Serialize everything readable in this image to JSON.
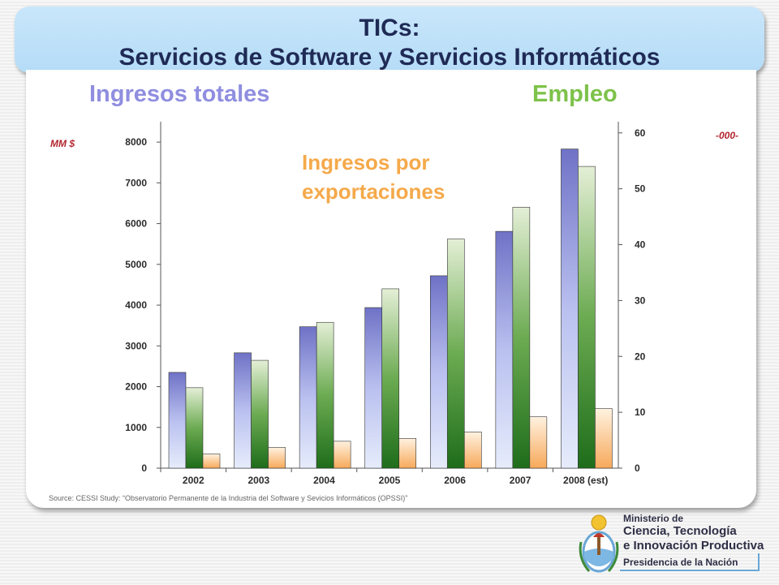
{
  "header": {
    "line1": "TICs:",
    "line2": "Servicios de Software y Servicios Informáticos"
  },
  "labels": {
    "ingresos_totales": "Ingresos totales",
    "empleo": "Empleo",
    "exportaciones_line1": "Ingresos por",
    "exportaciones_line2": "exportaciones",
    "unit_left": "MM $",
    "unit_right": "-000-"
  },
  "source": "Source: CESSI Study: “Observatorio Permanente de la Industria del Software y Sevicios Informáticos (OPSSI)”",
  "logo": {
    "line1": "Ministerio de",
    "line2": "Ciencia, Tecnología",
    "line3": "e Innovación Productiva",
    "line4": "Presidencia de la Nación"
  },
  "colors": {
    "ingresos": "#8f8ee0",
    "empleo": "#7dc24a",
    "exportaciones": "#f5a94a",
    "title_bar": "#b5dcf7",
    "title_text": "#1f2a55",
    "unit_text": "#b3262f"
  },
  "chart_data": {
    "type": "bar",
    "categories": [
      "2002",
      "2003",
      "2004",
      "2005",
      "2006",
      "2007",
      "2008 (est)"
    ],
    "y_left": {
      "ticks": [
        0,
        1000,
        2000,
        3000,
        4000,
        5000,
        6000,
        7000,
        8000
      ],
      "range": [
        0,
        8500
      ]
    },
    "y_right": {
      "ticks": [
        0,
        10,
        20,
        30,
        40,
        50,
        60
      ],
      "range": [
        0,
        62
      ]
    },
    "grid": false,
    "series": [
      {
        "name": "Ingresos totales",
        "axis": "left",
        "values": [
          2350,
          2830,
          3470,
          3940,
          4720,
          5810,
          7830
        ]
      },
      {
        "name": "Empleo",
        "axis": "right",
        "values": [
          14.4,
          19.3,
          26.1,
          32.1,
          41.0,
          46.7,
          54.0
        ]
      },
      {
        "name": "Ingresos por exportaciones",
        "axis": "left",
        "values": [
          350,
          510,
          660,
          730,
          890,
          1260,
          1460
        ]
      }
    ]
  }
}
